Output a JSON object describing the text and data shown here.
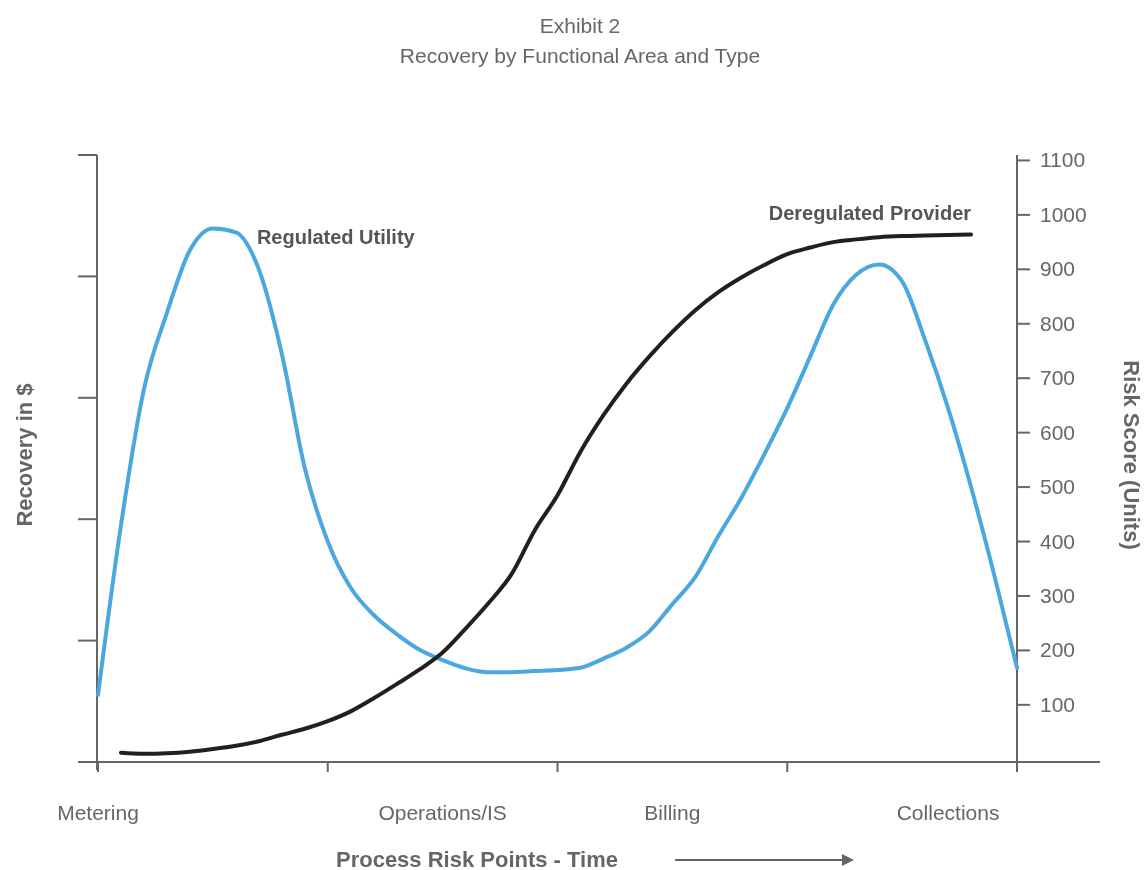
{
  "chart_data": {
    "type": "line",
    "title": "Exhibit 2",
    "subtitle": "Recovery by Functional Area and Type",
    "xlabel": "Process Risk Points - Time",
    "ylabel": "Recovery in $",
    "y2label": "Risk Score (Units)",
    "categories": [
      "Metering",
      null,
      null,
      null,
      null,
      null,
      null,
      null,
      null,
      null,
      null,
      null,
      null,
      null,
      null,
      "Operations/IS",
      null,
      null,
      null,
      null,
      null,
      null,
      null,
      null,
      null,
      "Billing",
      null,
      null,
      null,
      null,
      null,
      null,
      null,
      null,
      null,
      null,
      null,
      "Collections",
      null,
      null,
      null
    ],
    "y2lim": [
      -5,
      1110
    ],
    "y2ticks": [
      100,
      200,
      300,
      400,
      500,
      600,
      700,
      800,
      900,
      1000,
      1100
    ],
    "marker": "none",
    "line_style": "solid",
    "series": [
      {
        "name": "Regulated Utility",
        "color": "#4aa8df",
        "axis": "y2",
        "values": [
          118,
          430,
          680,
          820,
          935,
          975,
          968,
          900,
          745,
          535,
          400,
          315,
          265,
          230,
          201,
          182,
          167,
          160,
          160,
          162,
          164,
          168,
          185,
          205,
          235,
          285,
          335,
          410,
          480,
          560,
          645,
          740,
          835,
          890,
          909,
          878,
          770,
          645,
          500,
          340,
          168
        ]
      },
      {
        "name": "Deregulated Provider",
        "color": "#231f20",
        "axis": "y2",
        "values": [
          null,
          12,
          10,
          11,
          14,
          19,
          25,
          33,
          45,
          56,
          70,
          88,
          112,
          138,
          165,
          196,
          240,
          287,
          340,
          420,
          485,
          565,
          632,
          690,
          740,
          785,
          825,
          858,
          885,
          908,
          928,
          940,
          950,
          955,
          959,
          961,
          962,
          963,
          964,
          null,
          null
        ]
      }
    ]
  }
}
